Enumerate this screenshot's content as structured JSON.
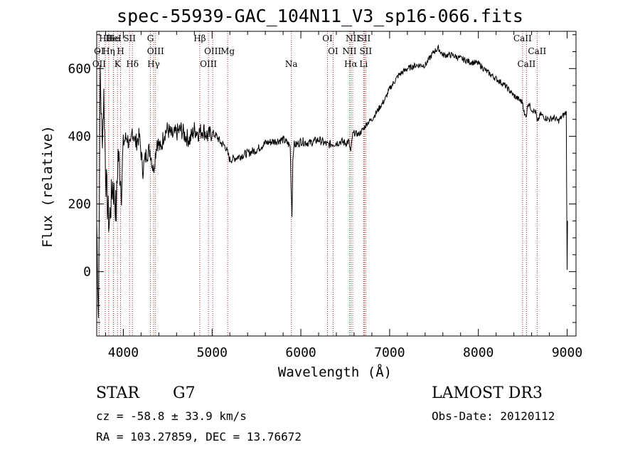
{
  "chart_data": {
    "type": "line",
    "title": "spec-55939-GAC_104N11_V3_sp16-066.fits",
    "xlabel": "Wavelength (Å)",
    "ylabel": "Flux (relative)",
    "xlim": [
      3700,
      9100
    ],
    "ylim": [
      -190,
      710
    ],
    "x_ticks": [
      4000,
      5000,
      6000,
      7000,
      8000,
      9000
    ],
    "y_ticks": [
      0,
      200,
      400,
      600
    ],
    "series": [
      {
        "name": "flux",
        "x": [
          3700,
          3720,
          3740,
          3760,
          3780,
          3800,
          3820,
          3840,
          3860,
          3880,
          3900,
          3920,
          3940,
          3960,
          3980,
          4000,
          4040,
          4080,
          4100,
          4140,
          4180,
          4220,
          4260,
          4300,
          4340,
          4380,
          4420,
          4460,
          4500,
          4550,
          4600,
          4650,
          4700,
          4750,
          4800,
          4850,
          4900,
          4950,
          5000,
          5050,
          5100,
          5150,
          5200,
          5300,
          5400,
          5500,
          5600,
          5700,
          5800,
          5850,
          5880,
          5890,
          5900,
          5910,
          5920,
          5950,
          6000,
          6100,
          6200,
          6300,
          6400,
          6450,
          6500,
          6540,
          6563,
          6580,
          6600,
          6650,
          6700,
          6750,
          6800,
          6850,
          6900,
          6950,
          7000,
          7050,
          7100,
          7150,
          7200,
          7300,
          7400,
          7450,
          7500,
          7550,
          7600,
          7700,
          7800,
          7900,
          8000,
          8100,
          8200,
          8300,
          8400,
          8450,
          8500,
          8520,
          8542,
          8560,
          8600,
          8650,
          8662,
          8700,
          8750,
          8800,
          8850,
          8900,
          8950,
          8990,
          9000,
          9005
        ],
        "values": [
          150,
          -130,
          600,
          380,
          520,
          300,
          200,
          140,
          200,
          260,
          220,
          180,
          350,
          300,
          250,
          380,
          400,
          360,
          420,
          380,
          400,
          300,
          350,
          360,
          300,
          390,
          360,
          410,
          420,
          400,
          410,
          420,
          400,
          390,
          420,
          410,
          420,
          400,
          410,
          400,
          380,
          370,
          330,
          340,
          350,
          360,
          380,
          385,
          390,
          380,
          370,
          260,
          165,
          330,
          375,
          375,
          385,
          380,
          390,
          375,
          380,
          385,
          380,
          385,
          350,
          400,
          410,
          405,
          420,
          440,
          450,
          470,
          490,
          510,
          540,
          560,
          580,
          590,
          600,
          610,
          610,
          630,
          650,
          660,
          640,
          640,
          630,
          620,
          615,
          590,
          570,
          550,
          520,
          510,
          500,
          460,
          465,
          500,
          480,
          470,
          440,
          465,
          455,
          450,
          455,
          445,
          460,
          470,
          0,
          150
        ]
      }
    ],
    "line_markers": [
      {
        "label": "Hθ",
        "wave": 3797
      },
      {
        "label": "OI",
        "wave": 3727
      },
      {
        "label": "OII",
        "wave": 3727
      },
      {
        "label": "He",
        "wave": 3889
      },
      {
        "label": "Hη",
        "wave": 3835
      },
      {
        "label": "K",
        "wave": 3934
      },
      {
        "label": "HeI",
        "wave": 3889
      },
      {
        "label": "H",
        "wave": 3969
      },
      {
        "label": "Hδ",
        "wave": 4102
      },
      {
        "label": "SII",
        "wave": 4070
      },
      {
        "label": "OIII",
        "wave": 4363
      },
      {
        "label": "Hγ",
        "wave": 4341
      },
      {
        "label": "G",
        "wave": 4305
      },
      {
        "label": "OIII",
        "wave": 5007
      },
      {
        "label": "OIII",
        "wave": 4959
      },
      {
        "label": "Hβ",
        "wave": 4861
      },
      {
        "label": "Mg",
        "wave": 5175
      },
      {
        "label": "Na",
        "wave": 5893
      },
      {
        "label": "OI",
        "wave": 6300
      },
      {
        "label": "OI",
        "wave": 6363
      },
      {
        "label": "Hα",
        "wave": 6563
      },
      {
        "label": "SII",
        "wave": 6716
      },
      {
        "label": "NII",
        "wave": 6548
      },
      {
        "label": "Li",
        "wave": 6707
      },
      {
        "label": "NII",
        "wave": 6584
      },
      {
        "label": "SII",
        "wave": 6731
      },
      {
        "label": "CaII",
        "wave": 8542
      },
      {
        "label": "CaII",
        "wave": 8498
      },
      {
        "label": "CaII",
        "wave": 8662
      }
    ]
  },
  "info": {
    "class_label": "STAR",
    "subclass": "G7",
    "survey": "LAMOST DR3",
    "cz": "cz = -58.8 ± 33.9 km/s",
    "obs_date": "Obs-Date: 20120112",
    "coords": "RA = 103.27859, DEC =  13.76672"
  },
  "colors": {
    "marker_line": "#a52a2a",
    "spectrum": "#000000",
    "axes": "#000000"
  }
}
